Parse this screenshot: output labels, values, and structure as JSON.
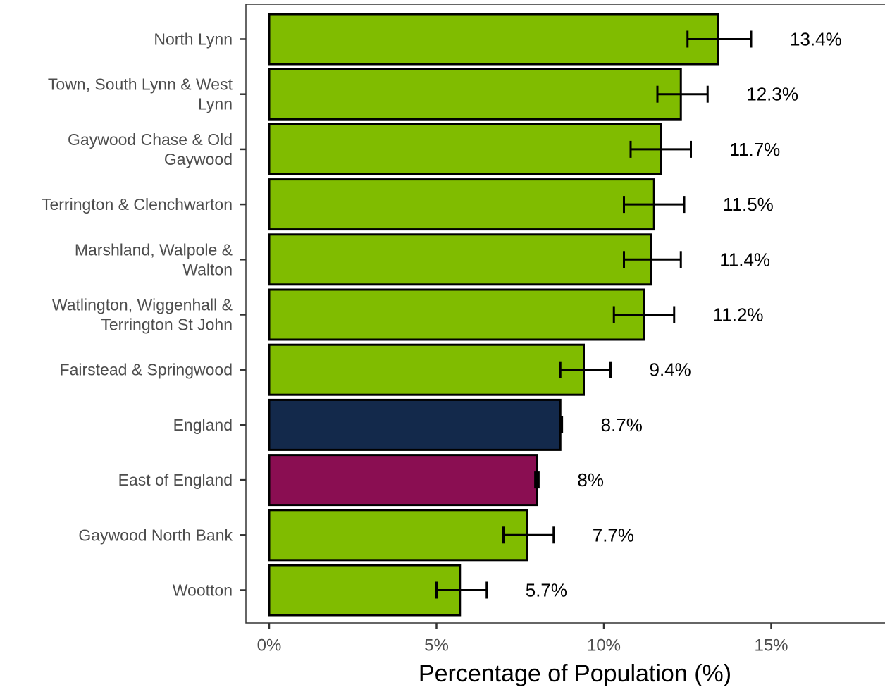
{
  "chart_data": {
    "type": "bar",
    "orientation": "horizontal",
    "xlabel": "Percentage of Population (%)",
    "xlim": [
      0,
      18
    ],
    "x_ticks": [
      0,
      5,
      10,
      15
    ],
    "x_tick_labels": [
      "0%",
      "5%",
      "10%",
      "15%"
    ],
    "grid": false,
    "legend": "none",
    "categories": [
      "North Lynn",
      "Town, South Lynn & West Lynn",
      "Gaywood Chase & Old Gaywood",
      "Terrington & Clenchwarton",
      "Marshland, Walpole & Walton",
      "Watlington, Wiggenhall & Terrington St John",
      "Fairstead & Springwood",
      "England",
      "East of England",
      "Gaywood North Bank",
      "Wootton"
    ],
    "category_label_lines": [
      [
        "North Lynn"
      ],
      [
        "Town, South Lynn & West",
        "Lynn"
      ],
      [
        "Gaywood Chase & Old",
        "Gaywood"
      ],
      [
        "Terrington & Clenchwarton"
      ],
      [
        "Marshland, Walpole &",
        "Walton"
      ],
      [
        "Watlington, Wiggenhall &",
        "Terrington St John"
      ],
      [
        "Fairstead & Springwood"
      ],
      [
        "England"
      ],
      [
        "East of England"
      ],
      [
        "Gaywood North Bank"
      ],
      [
        "Wootton"
      ]
    ],
    "values": [
      13.4,
      12.3,
      11.7,
      11.5,
      11.4,
      11.2,
      9.4,
      8.7,
      8.0,
      7.7,
      5.7
    ],
    "data_labels": [
      "13.4%",
      "12.3%",
      "11.7%",
      "11.5%",
      "11.4%",
      "11.2%",
      "9.4%",
      "8.7%",
      "8%",
      "7.7%",
      "5.7%"
    ],
    "error_low": [
      12.5,
      11.6,
      10.8,
      10.6,
      10.6,
      10.3,
      8.7,
      8.7,
      7.95,
      7.0,
      5.0
    ],
    "error_high": [
      14.4,
      13.1,
      12.6,
      12.4,
      12.3,
      12.1,
      10.2,
      8.75,
      8.05,
      8.5,
      6.5
    ],
    "bar_colors": [
      "#80bc00",
      "#80bc00",
      "#80bc00",
      "#80bc00",
      "#80bc00",
      "#80bc00",
      "#80bc00",
      "#13294b",
      "#8a0e52",
      "#80bc00",
      "#80bc00"
    ]
  }
}
